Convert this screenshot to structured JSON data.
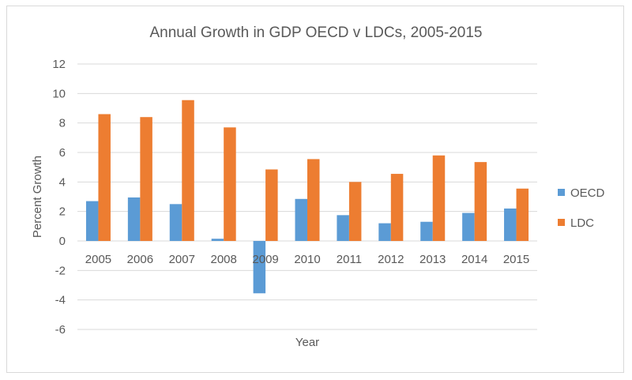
{
  "chart_data": {
    "type": "bar",
    "title": "Annual Growth in GDP OECD v LDCs, 2005-2015",
    "xlabel": "Year",
    "ylabel": "Percent Growth",
    "categories": [
      "2005",
      "2006",
      "2007",
      "2008",
      "2009",
      "2010",
      "2011",
      "2012",
      "2013",
      "2014",
      "2015"
    ],
    "series": [
      {
        "name": "OECD",
        "color": "#5b9bd5",
        "values": [
          2.7,
          2.95,
          2.5,
          0.15,
          -3.55,
          2.85,
          1.75,
          1.2,
          1.3,
          1.9,
          2.2
        ]
      },
      {
        "name": "LDC",
        "color": "#ed7d31",
        "values": [
          8.6,
          8.4,
          9.55,
          7.7,
          4.85,
          5.55,
          4.0,
          4.55,
          5.8,
          5.35,
          3.55
        ]
      }
    ],
    "ylim": [
      -6,
      12
    ],
    "yticks": [
      "-6",
      "-4",
      "-2",
      "0",
      "2",
      "4",
      "6",
      "8",
      "10",
      "12"
    ],
    "grid": true,
    "legend": "right"
  }
}
